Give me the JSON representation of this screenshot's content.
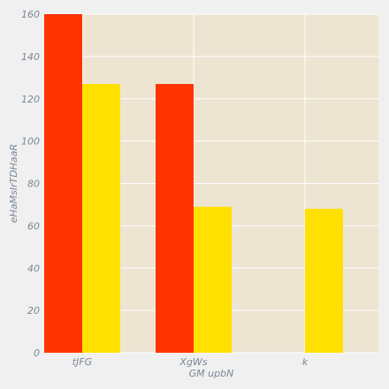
{
  "chart_data": {
    "type": "bar",
    "title": "",
    "xlabel": "GM upbN",
    "ylabel": "eHaMsIrTDHaaR",
    "categories": [
      "tJFG",
      "XgWs",
      "k"
    ],
    "series": [
      {
        "values": [
          160,
          127,
          0
        ],
        "color": "#ff3300"
      },
      {
        "values": [
          127,
          69,
          68
        ],
        "color": "#ffe000"
      }
    ],
    "ylim": [
      0,
      160
    ],
    "yticks": [
      0,
      20,
      40,
      60,
      80,
      100,
      120,
      140,
      160
    ],
    "grid": true,
    "legend": "none"
  },
  "colors": {
    "plot_background": "#ede5d2",
    "page_background": "#f0f0f0",
    "grid": "#ffffff",
    "text": "#7a8794"
  }
}
